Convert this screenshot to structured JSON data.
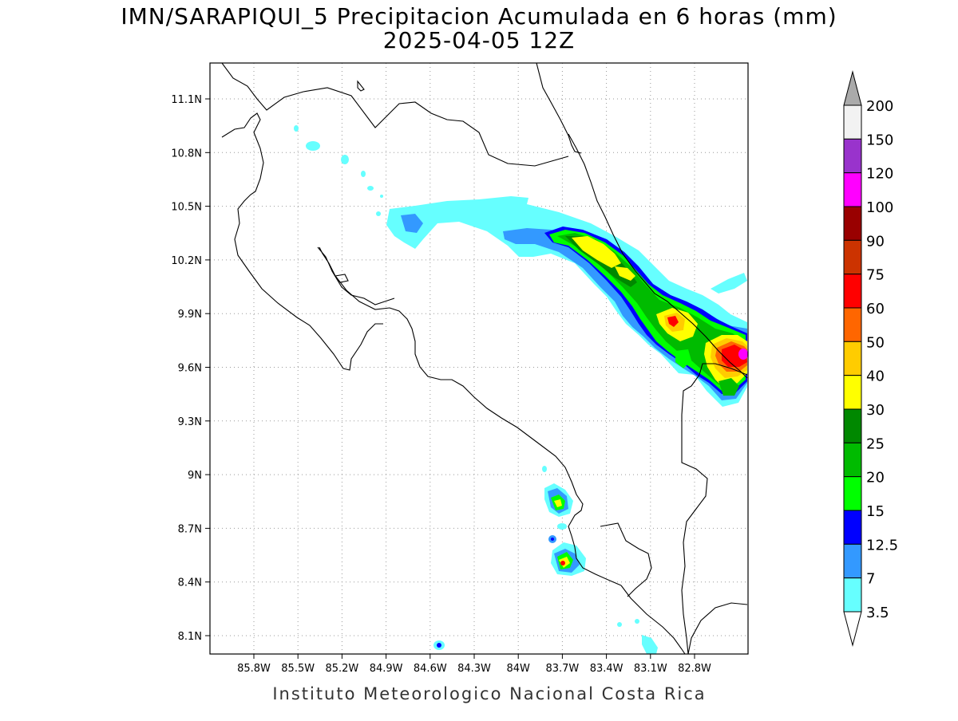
{
  "title": {
    "line1": "IMN/SARAPIQUI_5 Precipitacion Acumulada en 6 horas (mm)",
    "line2": "2025-04-05 12Z"
  },
  "footer": "Instituto Meteorologico Nacional Costa Rica",
  "map": {
    "lon_range": [
      -86.03,
      -82.43
    ],
    "lat_range": [
      7.99,
      11.3
    ],
    "lon_ticks": [
      "85.8W",
      "85.5W",
      "85.2W",
      "84.9W",
      "84.6W",
      "84.3W",
      "84W",
      "83.7W",
      "83.4W",
      "83.1W",
      "82.8W"
    ],
    "lat_ticks": [
      "11.1N",
      "10.8N",
      "10.5N",
      "10.2N",
      "9.9N",
      "9.6N",
      "9.3N",
      "9N",
      "8.7N",
      "8.4N",
      "8.1N"
    ],
    "grid": "dotted",
    "field": "precipitation 6h accumulated (mm)"
  },
  "colorbar": {
    "labels": [
      "200",
      "150",
      "120",
      "100",
      "90",
      "75",
      "60",
      "50",
      "40",
      "30",
      "25",
      "20",
      "15",
      "12.5",
      "7",
      "3.5"
    ],
    "colors": [
      "#f2f2f2",
      "#9933cc",
      "#ff00ff",
      "#990000",
      "#cc3300",
      "#ff0000",
      "#ff6600",
      "#ffcc00",
      "#ffff00",
      "#008800",
      "#00bb00",
      "#00ff00",
      "#0000ff",
      "#3399ff",
      "#66ffff"
    ],
    "over_color": "#aaaaaa",
    "under_color": "#ffffff"
  },
  "colors": {
    "light_cyan": "#66ffff",
    "blue_light": "#3399ff",
    "blue": "#0000ff",
    "green": "#00ff00",
    "green_mid": "#00bb00",
    "green_dark": "#008800",
    "yellow": "#ffff00",
    "orange_yellow": "#ffcc00",
    "orange": "#ff6600",
    "red": "#ff0000",
    "magenta": "#ff00ff"
  }
}
